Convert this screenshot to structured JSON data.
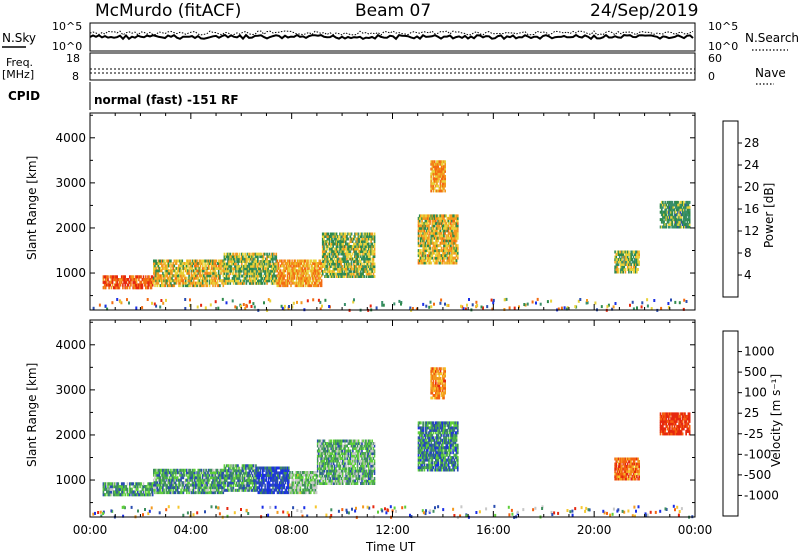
{
  "header": {
    "station": "McMurdo (fitACF)",
    "beam": "Beam 07",
    "date": "24/Sep/2019"
  },
  "top_strips": {
    "nsky_label": "N.Sky",
    "nsky_ticks": [
      "10^5",
      "10^0"
    ],
    "nsearch_label": "N.Search",
    "nsearch_ticks": [
      "10^5",
      "10^0"
    ],
    "freq_label": "Freq.",
    "freq_unit": "[MHz]",
    "freq_ticks": [
      "18",
      "8"
    ],
    "nave_label": "Nave",
    "nave_ticks": [
      "60",
      "0"
    ],
    "cpid_label": "CPID",
    "cpid_text": "normal (fast) -151 RF"
  },
  "colors": {
    "power": [
      "#1a2fe6",
      "#2a4db0",
      "#3a8f6a",
      "#2f8a4c",
      "#e8d23a",
      "#f39a1f",
      "#f36b12",
      "#e6280f"
    ],
    "velocity": [
      "#e6280f",
      "#f4600f",
      "#f39a1f",
      "#f6c72f",
      "#c8c8c8",
      "#5fcf3a",
      "#3f8f5f",
      "#2a4db0",
      "#1a2fe6"
    ]
  },
  "chart_data": [
    {
      "type": "heatmap",
      "title": "",
      "ylabel": "Slant Range [km]",
      "xlabel": "",
      "ylim": [
        180,
        4550
      ],
      "xlim": [
        0,
        24
      ],
      "y_ticks": [
        1000,
        2000,
        3000,
        4000
      ],
      "colorbar_label": "Power [dB]",
      "colorbar_ticks": [
        "4",
        "8",
        "12",
        "16",
        "20",
        "24",
        "28"
      ],
      "bands": [
        {
          "t0": 0.5,
          "t1": 2.5,
          "r0": 650,
          "r1": 950,
          "level": 0.85
        },
        {
          "t0": 2.5,
          "t1": 5.3,
          "r0": 700,
          "r1": 1300,
          "level": 0.6
        },
        {
          "t0": 5.3,
          "t1": 7.4,
          "r0": 750,
          "r1": 1450,
          "level": 0.5
        },
        {
          "t0": 7.4,
          "t1": 9.2,
          "r0": 700,
          "r1": 1300,
          "level": 0.7
        },
        {
          "t0": 9.2,
          "t1": 11.3,
          "r0": 900,
          "r1": 1900,
          "level": 0.5
        },
        {
          "t0": 13.0,
          "t1": 14.6,
          "r0": 1200,
          "r1": 2300,
          "level": 0.6
        },
        {
          "t0": 13.5,
          "t1": 14.1,
          "r0": 2800,
          "r1": 3500,
          "level": 0.7
        },
        {
          "t0": 20.8,
          "t1": 21.8,
          "r0": 1000,
          "r1": 1500,
          "level": 0.5
        },
        {
          "t0": 22.6,
          "t1": 23.8,
          "r0": 2000,
          "r1": 2600,
          "level": 0.4
        }
      ]
    },
    {
      "type": "heatmap",
      "title": "",
      "ylabel": "Slant Range [km]",
      "xlabel": "Time UT",
      "ylim": [
        180,
        4550
      ],
      "xlim": [
        0,
        24
      ],
      "y_ticks": [
        1000,
        2000,
        3000,
        4000
      ],
      "x_ticks": [
        "00:00",
        "04:00",
        "08:00",
        "12:00",
        "16:00",
        "20:00",
        "00:00"
      ],
      "colorbar_label": "Velocity [m s⁻¹]",
      "colorbar_ticks": [
        "-1000",
        "-500",
        "-100",
        "-25",
        "25",
        "100",
        "500",
        "1000"
      ],
      "bands": [
        {
          "t0": 0.5,
          "t1": 2.5,
          "r0": 650,
          "r1": 950,
          "level": 0.7
        },
        {
          "t0": 2.5,
          "t1": 5.3,
          "r0": 700,
          "r1": 1250,
          "level": 0.7
        },
        {
          "t0": 5.3,
          "t1": 6.6,
          "r0": 750,
          "r1": 1350,
          "level": 0.7
        },
        {
          "t0": 6.6,
          "t1": 7.9,
          "r0": 700,
          "r1": 1300,
          "level": 0.9
        },
        {
          "t0": 7.9,
          "t1": 9.0,
          "r0": 700,
          "r1": 1200,
          "level": 0.6
        },
        {
          "t0": 9.0,
          "t1": 11.3,
          "r0": 900,
          "r1": 1900,
          "level": 0.65
        },
        {
          "t0": 13.0,
          "t1": 14.6,
          "r0": 1200,
          "r1": 2300,
          "level": 0.75
        },
        {
          "t0": 13.5,
          "t1": 14.1,
          "r0": 2800,
          "r1": 3500,
          "level": 0.25
        },
        {
          "t0": 20.8,
          "t1": 21.8,
          "r0": 1000,
          "r1": 1500,
          "level": 0.2
        },
        {
          "t0": 22.6,
          "t1": 23.8,
          "r0": 2000,
          "r1": 2500,
          "level": 0.05
        }
      ]
    }
  ]
}
